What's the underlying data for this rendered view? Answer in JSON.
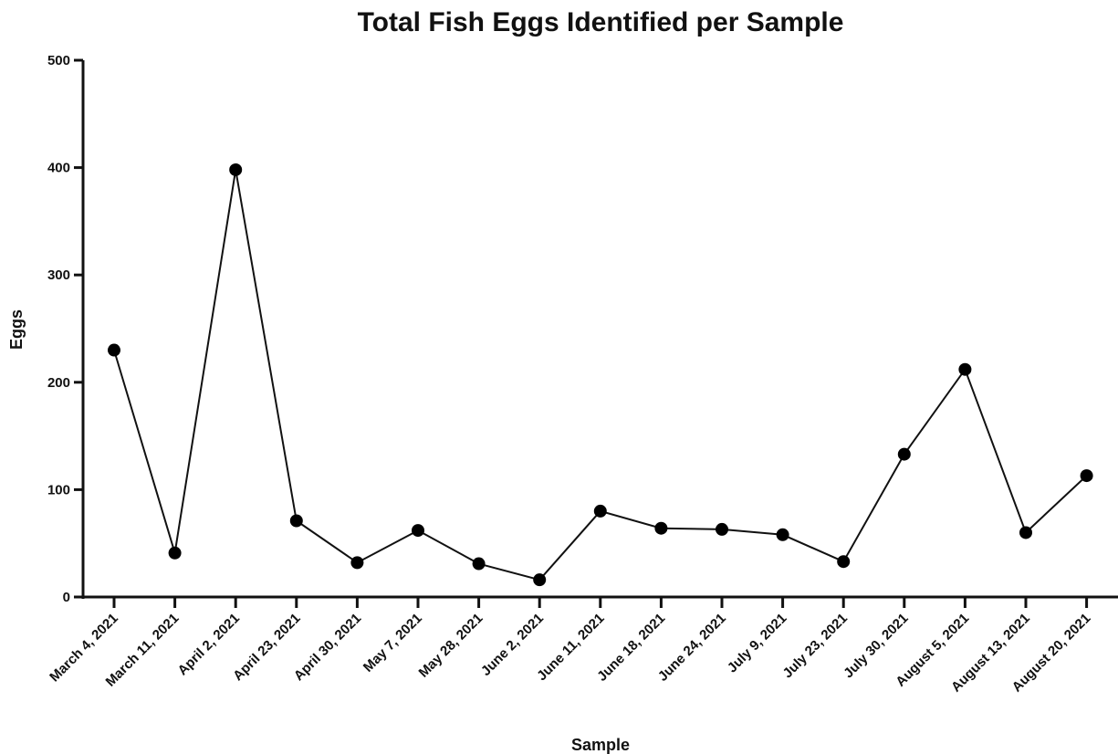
{
  "chart_data": {
    "type": "line",
    "title": "Total Fish Eggs Identified per Sample",
    "xlabel": "Sample",
    "ylabel": "Eggs",
    "ylim": [
      0,
      500
    ],
    "yticks": [
      "0",
      "100",
      "200",
      "300",
      "400",
      "500"
    ],
    "categories": [
      "March 4, 2021",
      "March 11, 2021",
      "April 2, 2021",
      "April 23, 2021",
      "April 30, 2021",
      "May 7, 2021",
      "May 28, 2021",
      "June 2, 2021",
      "June 11, 2021",
      "June 18, 2021",
      "June 24, 2021",
      "July 9, 2021",
      "July 23, 2021",
      "July 30, 2021",
      "August 5, 2021",
      "August 13, 2021",
      "August 20, 2021"
    ],
    "series": [
      {
        "values": [
          230,
          41,
          398,
          71,
          32,
          62,
          31,
          16,
          80,
          64,
          63,
          58,
          33,
          133,
          212,
          60,
          113
        ]
      }
    ],
    "grid": false,
    "legend": "none",
    "colors": {
      "line": "#111111",
      "marker": "#000000"
    }
  }
}
